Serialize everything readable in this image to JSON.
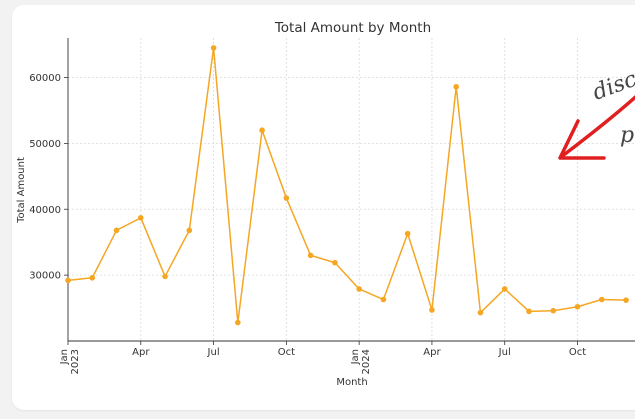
{
  "chart_data": {
    "type": "line",
    "title": "Total Amount by Month",
    "xlabel": "Month",
    "ylabel": "Total Amount",
    "ylim": [
      20000,
      66000
    ],
    "grid": true,
    "color": "#F5A623",
    "yticks": [
      30000,
      40000,
      50000,
      60000
    ],
    "ytick_labels": [
      "30000",
      "40000",
      "50000",
      "60000"
    ],
    "xticks": [
      {
        "index": 0,
        "label": "Jan",
        "sublabel": "2023"
      },
      {
        "index": 3,
        "label": "Apr",
        "sublabel": ""
      },
      {
        "index": 6,
        "label": "Jul",
        "sublabel": ""
      },
      {
        "index": 9,
        "label": "Oct",
        "sublabel": ""
      },
      {
        "index": 12,
        "label": "Jan",
        "sublabel": "2024"
      },
      {
        "index": 15,
        "label": "Apr",
        "sublabel": ""
      },
      {
        "index": 18,
        "label": "Jul",
        "sublabel": ""
      },
      {
        "index": 21,
        "label": "Oct",
        "sublabel": ""
      }
    ],
    "series": [
      {
        "x": [
          "2023-01",
          "2023-02",
          "2023-03",
          "2023-04",
          "2023-05",
          "2023-06",
          "2023-07",
          "2023-08",
          "2023-09",
          "2023-10",
          "2023-11",
          "2023-12",
          "2024-01",
          "2024-02",
          "2024-03",
          "2024-04",
          "2024-05",
          "2024-06",
          "2024-07",
          "2024-08",
          "2024-09",
          "2024-10",
          "2024-11",
          "2024-12"
        ],
        "values": [
          29200,
          29600,
          36800,
          38700,
          29800,
          36800,
          64500,
          22800,
          52000,
          41700,
          33000,
          31900,
          27900,
          26300,
          36300,
          24700,
          58600,
          24300,
          27900,
          24500,
          24600,
          25200,
          26300,
          26200
        ]
      }
    ]
  },
  "annotation": {
    "line1": "disc",
    "line2": "p",
    "arrow_color": "#E02020"
  }
}
